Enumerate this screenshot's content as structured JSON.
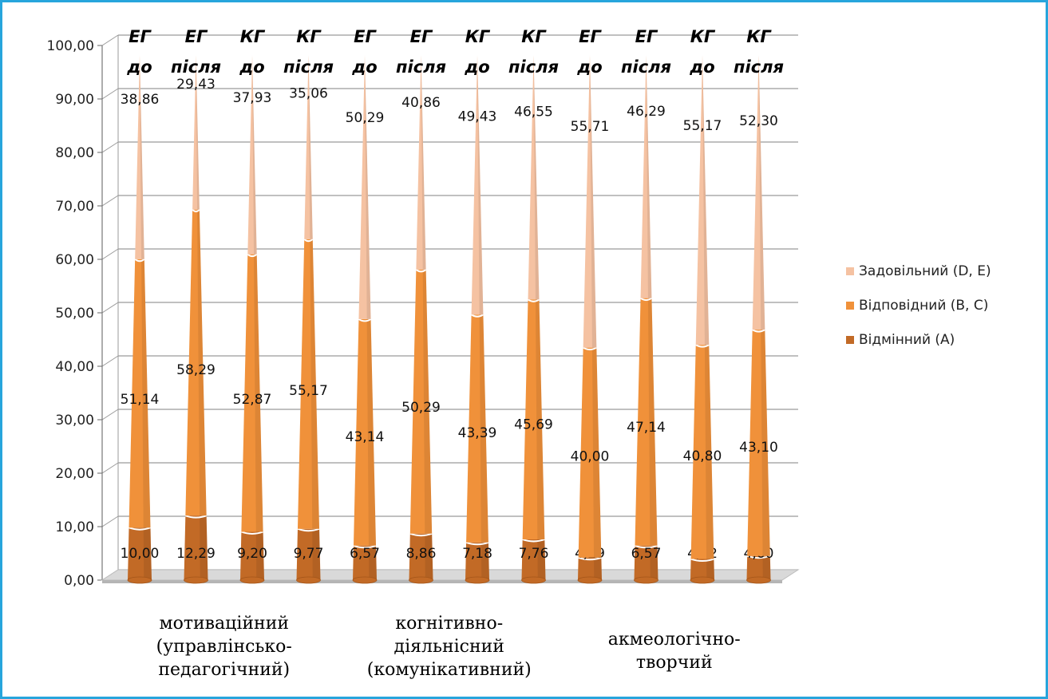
{
  "chart_data": {
    "type": "bar",
    "stacked": true,
    "y_ticks": [
      "0,00",
      "10,00",
      "20,00",
      "30,00",
      "40,00",
      "50,00",
      "60,00",
      "70,00",
      "80,00",
      "90,00",
      "100,00"
    ],
    "ylim": [
      0,
      100
    ],
    "grid": true,
    "legend_position": "right",
    "categories": [
      [
        "ЕГ",
        "до"
      ],
      [
        "ЕГ",
        "після"
      ],
      [
        "КГ",
        "до"
      ],
      [
        "КГ",
        "після"
      ],
      [
        "ЕГ",
        "до"
      ],
      [
        "ЕГ",
        "після"
      ],
      [
        "КГ",
        "до"
      ],
      [
        "КГ",
        "після"
      ],
      [
        "ЕГ",
        "до"
      ],
      [
        "ЕГ",
        "після"
      ],
      [
        "КГ",
        "до"
      ],
      [
        "КГ",
        "після"
      ]
    ],
    "groups": [
      {
        "lines": [
          "мотиваційний",
          "(управлінсько-",
          "педагогічний)"
        ]
      },
      {
        "lines": [
          "когнітивно-",
          "діяльнісний",
          "(комунікативний)"
        ]
      },
      {
        "lines": [
          "акмеологічно-",
          "творчий"
        ]
      }
    ],
    "series": [
      {
        "name": "Відмінний (A)",
        "color": "#c26a26",
        "values": [
          10.0,
          12.29,
          9.2,
          9.77,
          6.57,
          8.86,
          7.18,
          7.76,
          4.29,
          6.57,
          4.02,
          4.6
        ],
        "labels": [
          "10,00",
          "12,29",
          "9,20",
          "9,77",
          "6,57",
          "8,86",
          "7,18",
          "7,76",
          "4,29",
          "6,57",
          "4,02",
          "4,60"
        ]
      },
      {
        "name": "Відповідний (B, C)",
        "color": "#f0913a",
        "values": [
          51.14,
          58.29,
          52.87,
          55.17,
          43.14,
          50.29,
          43.39,
          45.69,
          40.0,
          47.14,
          40.8,
          43.1
        ],
        "labels": [
          "51,14",
          "58,29",
          "52,87",
          "55,17",
          "43,14",
          "50,29",
          "43,39",
          "45,69",
          "40,00",
          "47,14",
          "40,80",
          "43,10"
        ]
      },
      {
        "name": "Задовільний (D, E)",
        "color": "#f5c2a2",
        "values": [
          38.86,
          29.43,
          37.93,
          35.06,
          50.29,
          40.86,
          49.43,
          46.55,
          55.71,
          46.29,
          55.17,
          52.3
        ],
        "labels": [
          "38,86",
          "29,43",
          "37,93",
          "35,06",
          "50,29",
          "40,86",
          "49,43",
          "46,55",
          "55,71",
          "46,29",
          "55,17",
          "52,30"
        ]
      }
    ]
  }
}
